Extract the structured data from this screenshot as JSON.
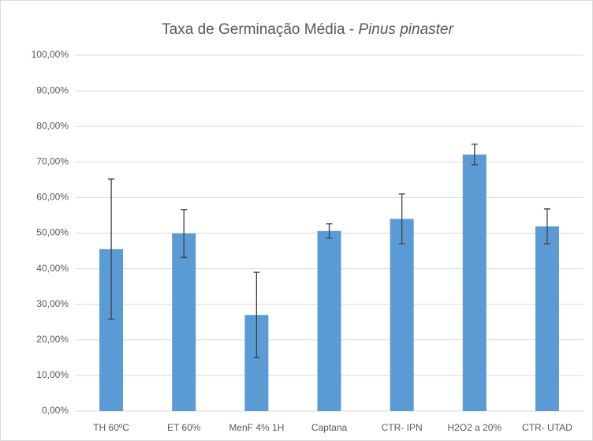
{
  "chart_data": {
    "type": "bar",
    "title": "Taxa de Germinação Média - ",
    "title_italic": "Pinus pinaster",
    "categories": [
      "TH 60ºC",
      "ET 60%",
      "MenF 4% 1H",
      "Captana",
      "CTR- IPN",
      "H2O2 a 20%",
      "CTR- UTAD"
    ],
    "values": [
      45.5,
      49.9,
      27.0,
      50.6,
      54.0,
      72.1,
      51.9
    ],
    "errors": [
      19.7,
      6.7,
      12.0,
      2.0,
      7.0,
      2.9,
      4.9
    ],
    "color": "#5b9bd5",
    "error_color": "#404040",
    "ylim": [
      0,
      100
    ],
    "yticks": [
      {
        "value": 0,
        "label": "0,00%"
      },
      {
        "value": 10,
        "label": "10,00%"
      },
      {
        "value": 20,
        "label": "20,00%"
      },
      {
        "value": 30,
        "label": "30,00%"
      },
      {
        "value": 40,
        "label": "40,00%"
      },
      {
        "value": 50,
        "label": "50,00%"
      },
      {
        "value": 60,
        "label": "60,00%"
      },
      {
        "value": 70,
        "label": "70,00%"
      },
      {
        "value": 80,
        "label": "80,00%"
      },
      {
        "value": 90,
        "label": "90,00%"
      },
      {
        "value": 100,
        "label": "100,00%"
      }
    ],
    "grid": true
  }
}
